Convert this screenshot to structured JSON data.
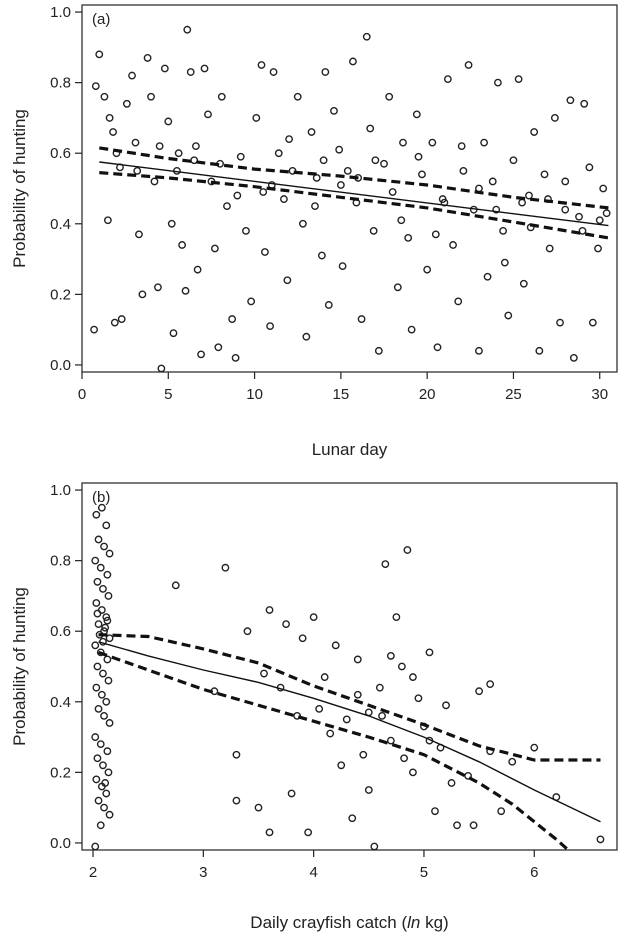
{
  "chart_data": [
    {
      "type": "scatter",
      "panel_label": "(a)",
      "xlabel": "Lunar day",
      "ylabel": "Probability of hunting",
      "xlim": [
        0,
        31
      ],
      "ylim": [
        -0.02,
        1.02
      ],
      "xticks": [
        0,
        5,
        10,
        15,
        20,
        25,
        30
      ],
      "yticks": [
        0.0,
        0.2,
        0.4,
        0.6,
        0.8,
        1.0
      ],
      "ytick_labels": [
        "0.0",
        "0.2",
        "0.4",
        "0.6",
        "0.8",
        "1.0"
      ],
      "xtick_labels": [
        "0",
        "5",
        "10",
        "15",
        "20",
        "25",
        "30"
      ],
      "grid": false,
      "fit": {
        "x": [
          1,
          30.5
        ],
        "y": [
          0.575,
          0.395
        ]
      },
      "ci_upper": {
        "x": [
          1,
          5,
          10,
          15,
          20,
          25,
          30.5
        ],
        "y": [
          0.615,
          0.585,
          0.555,
          0.535,
          0.51,
          0.475,
          0.445
        ]
      },
      "ci_lower": {
        "x": [
          1,
          5,
          10,
          15,
          20,
          25,
          30.5
        ],
        "y": [
          0.545,
          0.53,
          0.505,
          0.475,
          0.445,
          0.405,
          0.36
        ]
      },
      "points": [
        [
          0.8,
          0.79
        ],
        [
          1.0,
          0.88
        ],
        [
          1.3,
          0.76
        ],
        [
          1.6,
          0.7
        ],
        [
          1.8,
          0.66
        ],
        [
          0.7,
          0.1
        ],
        [
          1.9,
          0.12
        ],
        [
          2.3,
          0.13
        ],
        [
          2.2,
          0.56
        ],
        [
          1.5,
          0.41
        ],
        [
          2.6,
          0.74
        ],
        [
          2.9,
          0.82
        ],
        [
          3.1,
          0.63
        ],
        [
          3.3,
          0.37
        ],
        [
          3.5,
          0.2
        ],
        [
          3.8,
          0.87
        ],
        [
          4.0,
          0.76
        ],
        [
          4.2,
          0.52
        ],
        [
          4.4,
          0.22
        ],
        [
          4.6,
          -0.01
        ],
        [
          4.8,
          0.84
        ],
        [
          5.0,
          0.69
        ],
        [
          5.2,
          0.4
        ],
        [
          5.3,
          0.09
        ],
        [
          5.6,
          0.6
        ],
        [
          5.8,
          0.34
        ],
        [
          6.0,
          0.21
        ],
        [
          6.1,
          0.95
        ],
        [
          6.3,
          0.83
        ],
        [
          6.5,
          0.58
        ],
        [
          6.7,
          0.27
        ],
        [
          6.9,
          0.03
        ],
        [
          7.1,
          0.84
        ],
        [
          7.3,
          0.71
        ],
        [
          7.5,
          0.52
        ],
        [
          7.7,
          0.33
        ],
        [
          7.9,
          0.05
        ],
        [
          8.1,
          0.76
        ],
        [
          8.4,
          0.45
        ],
        [
          8.7,
          0.13
        ],
        [
          8.9,
          0.02
        ],
        [
          9.2,
          0.59
        ],
        [
          9.5,
          0.38
        ],
        [
          9.8,
          0.18
        ],
        [
          10.1,
          0.7
        ],
        [
          10.4,
          0.85
        ],
        [
          10.6,
          0.32
        ],
        [
          10.9,
          0.11
        ],
        [
          11.1,
          0.83
        ],
        [
          11.4,
          0.6
        ],
        [
          11.7,
          0.47
        ],
        [
          11.9,
          0.24
        ],
        [
          12.2,
          0.55
        ],
        [
          12.5,
          0.76
        ],
        [
          12.8,
          0.4
        ],
        [
          13.0,
          0.08
        ],
        [
          13.3,
          0.66
        ],
        [
          13.6,
          0.53
        ],
        [
          13.9,
          0.31
        ],
        [
          14.1,
          0.83
        ],
        [
          14.3,
          0.17
        ],
        [
          14.6,
          0.72
        ],
        [
          14.9,
          0.61
        ],
        [
          15.1,
          0.28
        ],
        [
          15.4,
          0.55
        ],
        [
          15.7,
          0.86
        ],
        [
          15.9,
          0.46
        ],
        [
          16.2,
          0.13
        ],
        [
          16.5,
          0.93
        ],
        [
          16.7,
          0.67
        ],
        [
          16.9,
          0.38
        ],
        [
          17.2,
          0.04
        ],
        [
          17.5,
          0.57
        ],
        [
          17.8,
          0.76
        ],
        [
          18.0,
          0.49
        ],
        [
          18.3,
          0.22
        ],
        [
          18.6,
          0.63
        ],
        [
          18.9,
          0.36
        ],
        [
          19.1,
          0.1
        ],
        [
          19.4,
          0.71
        ],
        [
          19.7,
          0.54
        ],
        [
          20.0,
          0.27
        ],
        [
          20.3,
          0.63
        ],
        [
          20.6,
          0.05
        ],
        [
          20.9,
          0.47
        ],
        [
          21.2,
          0.81
        ],
        [
          21.5,
          0.34
        ],
        [
          21.8,
          0.18
        ],
        [
          22.1,
          0.55
        ],
        [
          22.4,
          0.85
        ],
        [
          22.7,
          0.44
        ],
        [
          23.0,
          0.04
        ],
        [
          23.3,
          0.63
        ],
        [
          23.5,
          0.25
        ],
        [
          23.8,
          0.52
        ],
        [
          24.1,
          0.8
        ],
        [
          24.4,
          0.38
        ],
        [
          24.7,
          0.14
        ],
        [
          25.0,
          0.58
        ],
        [
          25.3,
          0.81
        ],
        [
          25.6,
          0.23
        ],
        [
          25.9,
          0.48
        ],
        [
          26.2,
          0.66
        ],
        [
          26.5,
          0.04
        ],
        [
          26.8,
          0.54
        ],
        [
          27.1,
          0.33
        ],
        [
          27.4,
          0.7
        ],
        [
          27.7,
          0.12
        ],
        [
          28.0,
          0.52
        ],
        [
          28.3,
          0.75
        ],
        [
          28.5,
          0.02
        ],
        [
          28.8,
          0.42
        ],
        [
          29.1,
          0.74
        ],
        [
          29.4,
          0.56
        ],
        [
          29.6,
          0.12
        ],
        [
          29.9,
          0.33
        ],
        [
          30.2,
          0.5
        ],
        [
          30.4,
          0.43
        ],
        [
          3.2,
          0.55
        ],
        [
          6.6,
          0.62
        ],
        [
          9.0,
          0.48
        ],
        [
          12.0,
          0.64
        ],
        [
          13.5,
          0.45
        ],
        [
          15.0,
          0.51
        ],
        [
          17.0,
          0.58
        ],
        [
          18.5,
          0.41
        ],
        [
          21.0,
          0.46
        ],
        [
          22.0,
          0.62
        ],
        [
          24.0,
          0.44
        ],
        [
          26.0,
          0.39
        ],
        [
          27.0,
          0.47
        ],
        [
          29.0,
          0.38
        ],
        [
          2.0,
          0.6
        ],
        [
          4.5,
          0.62
        ],
        [
          8.0,
          0.57
        ],
        [
          11.0,
          0.51
        ],
        [
          14.0,
          0.58
        ],
        [
          16.0,
          0.53
        ],
        [
          19.5,
          0.59
        ],
        [
          23.0,
          0.5
        ],
        [
          25.5,
          0.46
        ],
        [
          28.0,
          0.44
        ],
        [
          30.0,
          0.41
        ],
        [
          5.5,
          0.55
        ],
        [
          10.5,
          0.49
        ],
        [
          20.5,
          0.37
        ],
        [
          24.5,
          0.29
        ]
      ]
    },
    {
      "type": "scatter",
      "panel_label": "(b)",
      "xlabel": "Daily crayfish catch (",
      "xlabel_italic": "ln",
      "xlabel_tail": " kg)",
      "ylabel": "Probability of hunting",
      "xlim": [
        1.9,
        6.75
      ],
      "ylim": [
        -0.02,
        1.02
      ],
      "xticks": [
        2,
        3,
        4,
        5,
        6
      ],
      "xtick_labels": [
        "2",
        "3",
        "4",
        "5",
        "6"
      ],
      "yticks": [
        0.0,
        0.2,
        0.4,
        0.6,
        0.8,
        1.0
      ],
      "ytick_labels": [
        "0.0",
        "0.2",
        "0.4",
        "0.6",
        "0.8",
        "1.0"
      ],
      "grid": false,
      "fit": {
        "x": [
          2.05,
          2.5,
          3.0,
          3.5,
          4.0,
          4.5,
          5.0,
          5.5,
          6.0,
          6.6
        ],
        "y": [
          0.57,
          0.53,
          0.49,
          0.455,
          0.41,
          0.36,
          0.3,
          0.23,
          0.15,
          0.06
        ]
      },
      "ci_upper": {
        "x": [
          2.05,
          2.5,
          3.0,
          3.5,
          4.0,
          4.5,
          5.0,
          5.5,
          6.0,
          6.3,
          6.6
        ],
        "y": [
          0.59,
          0.585,
          0.55,
          0.51,
          0.445,
          0.39,
          0.335,
          0.275,
          0.235,
          0.235,
          0.235
        ]
      },
      "ci_lower": {
        "x": [
          2.05,
          2.5,
          3.0,
          3.5,
          4.0,
          4.5,
          5.0,
          5.5,
          5.8,
          6.0,
          6.2,
          6.45
        ],
        "y": [
          0.54,
          0.49,
          0.435,
          0.39,
          0.345,
          0.3,
          0.25,
          0.17,
          0.11,
          0.06,
          0.01,
          -0.06
        ]
      },
      "points": [
        [
          2.03,
          0.93
        ],
        [
          2.08,
          0.95
        ],
        [
          2.12,
          0.9
        ],
        [
          2.05,
          0.86
        ],
        [
          2.1,
          0.84
        ],
        [
          2.15,
          0.82
        ],
        [
          2.02,
          0.8
        ],
        [
          2.07,
          0.78
        ],
        [
          2.13,
          0.76
        ],
        [
          2.04,
          0.74
        ],
        [
          2.09,
          0.72
        ],
        [
          2.14,
          0.7
        ],
        [
          2.03,
          0.68
        ],
        [
          2.08,
          0.66
        ],
        [
          2.12,
          0.64
        ],
        [
          2.05,
          0.62
        ],
        [
          2.1,
          0.6
        ],
        [
          2.15,
          0.58
        ],
        [
          2.02,
          0.56
        ],
        [
          2.07,
          0.54
        ],
        [
          2.13,
          0.52
        ],
        [
          2.04,
          0.5
        ],
        [
          2.09,
          0.48
        ],
        [
          2.14,
          0.46
        ],
        [
          2.03,
          0.44
        ],
        [
          2.08,
          0.42
        ],
        [
          2.12,
          0.4
        ],
        [
          2.05,
          0.38
        ],
        [
          2.1,
          0.36
        ],
        [
          2.15,
          0.34
        ],
        [
          2.02,
          0.3
        ],
        [
          2.07,
          0.28
        ],
        [
          2.13,
          0.26
        ],
        [
          2.04,
          0.24
        ],
        [
          2.09,
          0.22
        ],
        [
          2.14,
          0.2
        ],
        [
          2.03,
          0.18
        ],
        [
          2.08,
          0.16
        ],
        [
          2.12,
          0.14
        ],
        [
          2.05,
          0.12
        ],
        [
          2.1,
          0.1
        ],
        [
          2.15,
          0.08
        ],
        [
          2.07,
          0.05
        ],
        [
          2.02,
          -0.01
        ],
        [
          2.11,
          0.17
        ],
        [
          2.06,
          0.59
        ],
        [
          2.11,
          0.61
        ],
        [
          2.04,
          0.65
        ],
        [
          2.09,
          0.57
        ],
        [
          2.13,
          0.63
        ],
        [
          2.75,
          0.73
        ],
        [
          3.2,
          0.78
        ],
        [
          3.3,
          0.12
        ],
        [
          3.4,
          0.6
        ],
        [
          3.5,
          0.1
        ],
        [
          3.6,
          0.66
        ],
        [
          3.7,
          0.44
        ],
        [
          3.8,
          0.14
        ],
        [
          3.9,
          0.58
        ],
        [
          3.95,
          0.03
        ],
        [
          4.0,
          0.64
        ],
        [
          4.1,
          0.47
        ],
        [
          4.2,
          0.56
        ],
        [
          4.3,
          0.35
        ],
        [
          4.35,
          0.07
        ],
        [
          4.4,
          0.52
        ],
        [
          4.45,
          0.25
        ],
        [
          4.5,
          0.37
        ],
        [
          4.55,
          -0.01
        ],
        [
          4.6,
          0.44
        ],
        [
          4.65,
          0.79
        ],
        [
          4.7,
          0.29
        ],
        [
          4.75,
          0.64
        ],
        [
          4.8,
          0.5
        ],
        [
          4.85,
          0.83
        ],
        [
          4.9,
          0.2
        ],
        [
          4.95,
          0.41
        ],
        [
          5.0,
          0.33
        ],
        [
          5.05,
          0.54
        ],
        [
          5.1,
          0.09
        ],
        [
          5.15,
          0.27
        ],
        [
          5.2,
          0.39
        ],
        [
          5.3,
          0.05
        ],
        [
          5.4,
          0.19
        ],
        [
          5.5,
          0.43
        ],
        [
          5.6,
          0.26
        ],
        [
          5.7,
          0.09
        ],
        [
          5.8,
          0.23
        ],
        [
          6.0,
          0.27
        ],
        [
          6.2,
          0.13
        ],
        [
          6.6,
          0.01
        ],
        [
          3.3,
          0.25
        ],
        [
          3.55,
          0.48
        ],
        [
          3.75,
          0.62
        ],
        [
          4.05,
          0.38
        ],
        [
          4.25,
          0.22
        ],
        [
          4.5,
          0.15
        ],
        [
          4.7,
          0.53
        ],
        [
          4.9,
          0.47
        ],
        [
          5.25,
          0.17
        ],
        [
          3.6,
          0.03
        ],
        [
          3.1,
          0.43
        ],
        [
          4.15,
          0.31
        ],
        [
          4.4,
          0.42
        ],
        [
          4.62,
          0.36
        ],
        [
          4.82,
          0.24
        ],
        [
          5.05,
          0.29
        ],
        [
          5.45,
          0.05
        ],
        [
          5.6,
          0.45
        ],
        [
          3.85,
          0.36
        ]
      ]
    }
  ]
}
